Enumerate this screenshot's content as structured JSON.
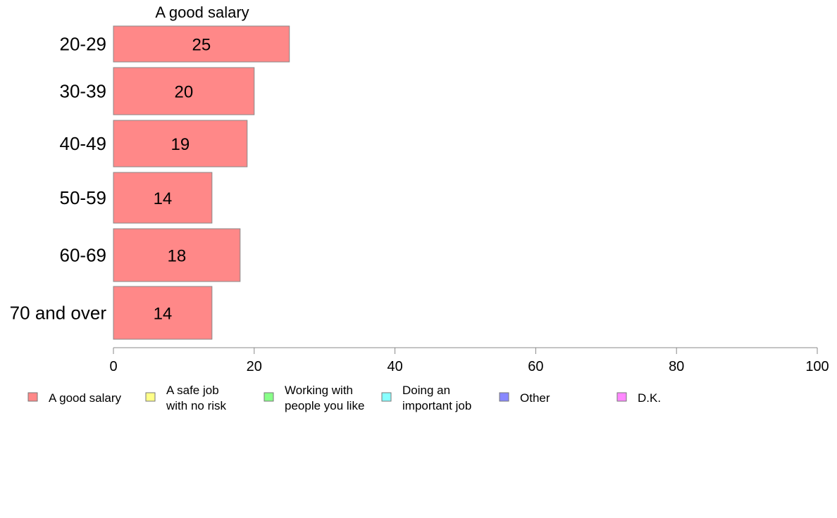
{
  "chart_data": {
    "type": "bar",
    "orientation": "horizontal",
    "title": "A good salary",
    "categories": [
      "20-29",
      "30-39",
      "40-49",
      "50-59",
      "60-69",
      "70 and over"
    ],
    "series": [
      {
        "name": "A good salary",
        "values": [
          25,
          20,
          19,
          14,
          18,
          14
        ]
      }
    ],
    "value_labels": [
      "25",
      "20",
      "19",
      "14",
      "18",
      "14"
    ],
    "xlim": [
      0,
      100
    ],
    "xticks": [
      0,
      20,
      40,
      60,
      80,
      100
    ],
    "grid": false,
    "legend_position": "bottom",
    "legend": [
      {
        "lines": [
          "A good salary"
        ],
        "color": "#ff8888"
      },
      {
        "lines": [
          "A safe job",
          "with no risk"
        ],
        "color": "#ffff88"
      },
      {
        "lines": [
          "Working with",
          "people you like"
        ],
        "color": "#88ff88"
      },
      {
        "lines": [
          "Doing an",
          "important job"
        ],
        "color": "#88ffff"
      },
      {
        "lines": [
          "Other"
        ],
        "color": "#8888ff"
      },
      {
        "lines": [
          "D.K."
        ],
        "color": "#ff88ff"
      }
    ]
  }
}
